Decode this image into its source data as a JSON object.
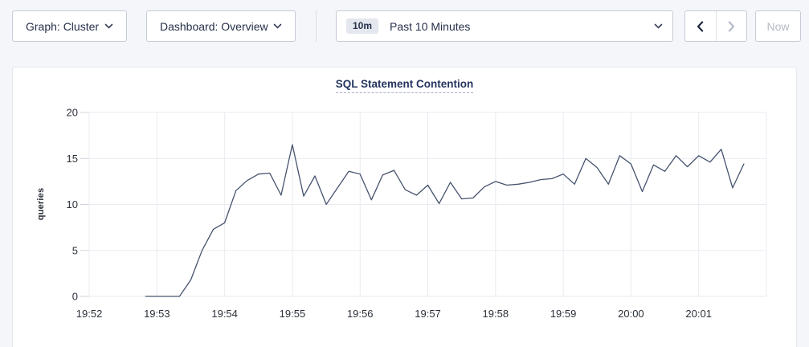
{
  "topbar": {
    "graph_selector": {
      "label": "Graph: Cluster",
      "icon": "chevron-down"
    },
    "dashboard_selector": {
      "label": "Dashboard: Overview",
      "icon": "chevron-down"
    },
    "time_picker": {
      "badge": "10m",
      "label": "Past 10 Minutes",
      "icon": "chevron-down"
    },
    "prev_button": {
      "icon": "chevron-left",
      "enabled": true
    },
    "next_button": {
      "icon": "chevron-right",
      "enabled": false
    },
    "now_button": {
      "label": "Now",
      "enabled": false
    }
  },
  "colors": {
    "page_bg": "#f4f6f9",
    "card_bg": "#ffffff",
    "card_border": "#e3e6ec",
    "control_border": "#c6cbd6",
    "control_text": "#26304a",
    "disabled_text": "#b4bac5",
    "badge_bg": "#e4e7ed",
    "title": "#25355e",
    "title_underline": "#a6b0c6",
    "grid": "#e9ebf0",
    "tick_dash": "#ced2da",
    "tick_text": "#2b3039",
    "line": "#46536e"
  },
  "chart_data": {
    "type": "line",
    "title": "SQL Statement Contention",
    "xlabel": "",
    "ylabel": "queries",
    "ylim": [
      0,
      20
    ],
    "yticks": [
      0,
      5,
      10,
      15,
      20
    ],
    "x_domain": [
      "19:51:50",
      "20:02:00"
    ],
    "x_gridlines": [
      "19:52",
      "19:53",
      "19:54",
      "19:55",
      "19:56",
      "19:57",
      "19:58",
      "19:59",
      "20:00",
      "20:01",
      "20:02"
    ],
    "x_tick_labels": [
      "19:52",
      "19:53",
      "19:54",
      "19:55",
      "19:56",
      "19:57",
      "19:58",
      "19:59",
      "20:00",
      "20:01"
    ],
    "grid": true,
    "legend": "none",
    "series": [
      {
        "name": "SQL Statement Contention",
        "x": [
          "19:52:50",
          "19:53:00",
          "19:53:10",
          "19:53:20",
          "19:53:30",
          "19:53:40",
          "19:53:50",
          "19:54:00",
          "19:54:10",
          "19:54:20",
          "19:54:30",
          "19:54:40",
          "19:54:50",
          "19:55:00",
          "19:55:10",
          "19:55:20",
          "19:55:30",
          "19:55:40",
          "19:55:50",
          "19:56:00",
          "19:56:10",
          "19:56:20",
          "19:56:30",
          "19:56:40",
          "19:56:50",
          "19:57:00",
          "19:57:10",
          "19:57:20",
          "19:57:30",
          "19:57:40",
          "19:57:50",
          "19:58:00",
          "19:58:10",
          "19:58:20",
          "19:58:30",
          "19:58:40",
          "19:58:50",
          "19:59:00",
          "19:59:10",
          "19:59:20",
          "19:59:30",
          "19:59:40",
          "19:59:50",
          "20:00:00",
          "20:00:10",
          "20:00:20",
          "20:00:30",
          "20:00:40",
          "20:00:50",
          "20:01:00",
          "20:01:10",
          "20:01:20",
          "20:01:30",
          "20:01:40"
        ],
        "values": [
          0,
          0,
          0,
          0,
          1.8,
          5.0,
          7.3,
          8.0,
          11.5,
          12.6,
          13.3,
          13.4,
          11.0,
          16.5,
          10.9,
          13.1,
          10.0,
          11.8,
          13.6,
          13.3,
          10.5,
          13.2,
          13.7,
          11.6,
          11.0,
          12.1,
          10.1,
          12.4,
          10.6,
          10.7,
          11.9,
          12.5,
          12.1,
          12.2,
          12.4,
          12.7,
          12.8,
          13.3,
          12.2,
          15.0,
          14.0,
          12.2,
          15.3,
          14.4,
          11.4,
          14.3,
          13.6,
          15.3,
          14.1,
          15.3,
          14.6,
          16.0,
          11.8,
          14.4
        ]
      }
    ]
  }
}
